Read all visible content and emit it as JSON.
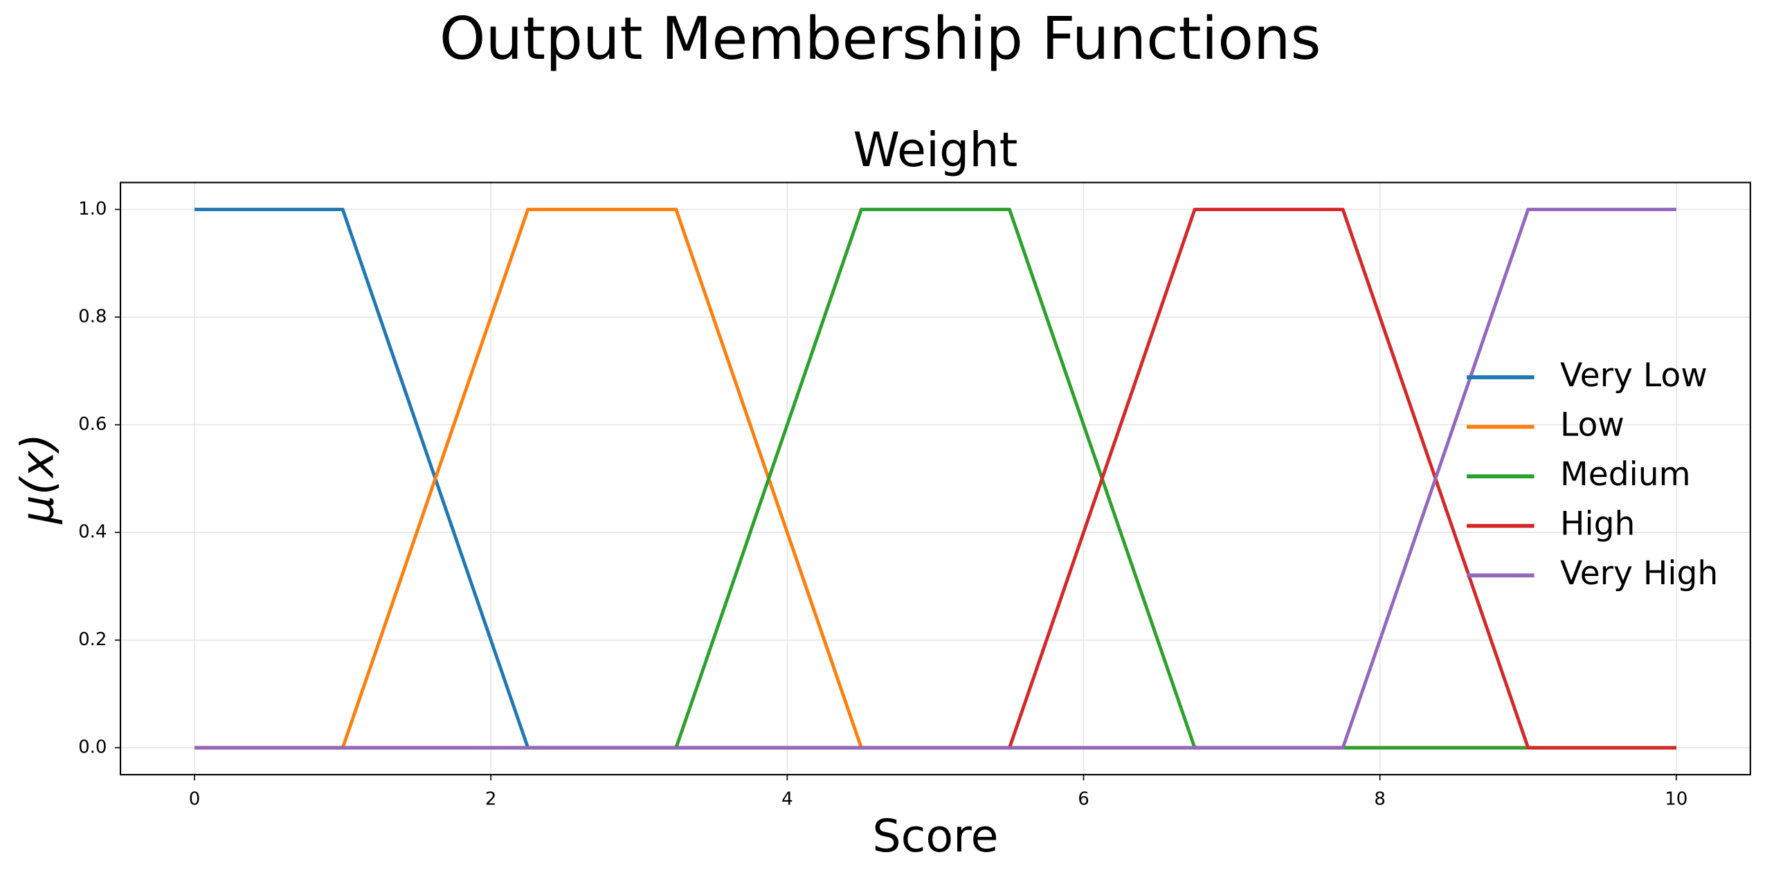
{
  "chart_data": {
    "type": "line",
    "title": "Output Membership Functions",
    "subtitle": "Weight",
    "x_label": "Score",
    "y_label": "μ(x)",
    "xlim": [
      -0.5,
      10.5
    ],
    "ylim": [
      -0.05,
      1.05
    ],
    "xticks": [
      0,
      2,
      4,
      6,
      8,
      10
    ],
    "yticks": [
      {
        "value": 0,
        "label": "0.0"
      },
      0.2,
      0.4,
      0.6,
      0.8,
      {
        "value": 1,
        "label": "1.0"
      }
    ],
    "grid": true,
    "legend": "center right",
    "series": [
      {
        "name": "Very Low",
        "color": "#1f77b4",
        "x": [
          0,
          1,
          2.25,
          10
        ],
        "values": [
          1,
          1,
          0,
          0
        ]
      },
      {
        "name": "Low",
        "color": "#ff7f0e",
        "x": [
          0,
          1,
          2.25,
          3.25,
          4.5,
          10
        ],
        "values": [
          0,
          0,
          1,
          1,
          0,
          0
        ]
      },
      {
        "name": "Medium",
        "color": "#2ca02c",
        "x": [
          0,
          3.25,
          4.5,
          5.5,
          6.75,
          10
        ],
        "values": [
          0,
          0,
          1,
          1,
          0,
          0
        ]
      },
      {
        "name": "High",
        "color": "#d62728",
        "x": [
          0,
          5.5,
          6.75,
          7.75,
          9,
          10
        ],
        "values": [
          0,
          0,
          1,
          1,
          0,
          0
        ]
      },
      {
        "name": "Very High",
        "color": "#9467bd",
        "x": [
          0,
          7.75,
          9,
          10
        ],
        "values": [
          0,
          0,
          1,
          1
        ]
      }
    ]
  }
}
